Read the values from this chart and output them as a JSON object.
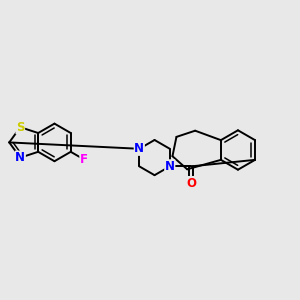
{
  "background_color": "#e8e8e8",
  "bond_color": "#000000",
  "atom_colors": {
    "S": "#cccc00",
    "N": "#0000ff",
    "F": "#ff00ff",
    "O": "#ff0000",
    "C": "#000000"
  },
  "figsize": [
    3.0,
    3.0
  ],
  "dpi": 100
}
